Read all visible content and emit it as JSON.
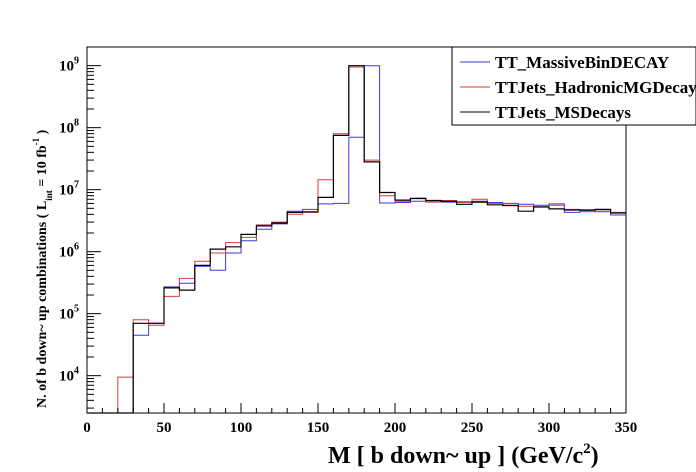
{
  "chart_data": {
    "type": "histogram",
    "xlabel": "M [ b down~ up ] (GeV/c²)",
    "ylabel": "N. of b down~ up combinations  ( L int = 10 fb⁻¹ )",
    "ylabel_main": "N. of b down~ up combinations  ( L",
    "ylabel_sub": "int",
    "ylabel_end": " = 10 fb",
    "ylabel_sup": "-1",
    "ylabel_close": " )",
    "xlabel_main": "M [ b down~ up ] (GeV/c",
    "xlabel_sup": "2",
    "xlabel_close": ")",
    "x_range": [
      0,
      350
    ],
    "y_range": [
      2500,
      2000000000
    ],
    "y_scale": "log",
    "grid": false,
    "legend_position": "top-right",
    "x_ticks": [
      "0",
      "50",
      "100",
      "150",
      "200",
      "250",
      "300",
      "350"
    ],
    "y_ticks": [
      {
        "base": "10",
        "exp": "4"
      },
      {
        "base": "10",
        "exp": "5"
      },
      {
        "base": "10",
        "exp": "6"
      },
      {
        "base": "10",
        "exp": "7"
      },
      {
        "base": "10",
        "exp": "8"
      },
      {
        "base": "10",
        "exp": "9"
      }
    ],
    "bin_edges": [
      0,
      10,
      20,
      30,
      40,
      50,
      60,
      70,
      80,
      90,
      100,
      110,
      120,
      130,
      140,
      150,
      160,
      170,
      180,
      190,
      200,
      210,
      220,
      230,
      240,
      250,
      260,
      270,
      280,
      290,
      300,
      310,
      320,
      330,
      340,
      350
    ],
    "series": [
      {
        "name": "TT_MassiveBinDECAY",
        "color": "#3b3bd9",
        "values": [
          2000,
          2000,
          2000,
          45000,
          70000,
          270000,
          310000,
          580000,
          500000,
          950000,
          1500000,
          2300000,
          2800000,
          4500000,
          4800000,
          5900000,
          6000000,
          70000000,
          1000000000,
          6100000,
          6200000,
          6500000,
          6600000,
          6300000,
          6400000,
          6500000,
          6200000,
          6000000,
          5800000,
          5600000,
          5900000,
          4300000,
          4600000,
          4400000,
          3900000
        ]
      },
      {
        "name": "TTJets_HadronicMGDecays",
        "color": "#d93b3b",
        "values": [
          2000,
          2000,
          9500,
          80000,
          65000,
          190000,
          370000,
          700000,
          950000,
          1400000,
          1700000,
          2700000,
          3000000,
          4000000,
          4300000,
          14500000,
          80000000,
          950000000,
          30000000,
          8000000,
          6500000,
          7300000,
          6300000,
          6700000,
          6200000,
          7000000,
          6000000,
          5500000,
          5400000,
          5200000,
          5600000,
          4800000,
          4400000,
          4700000,
          4300000
        ]
      },
      {
        "name": "TTJets_MSDecays",
        "color": "#000000",
        "values": [
          2000,
          2000,
          2000,
          70000,
          70000,
          260000,
          240000,
          600000,
          1100000,
          1200000,
          1900000,
          2600000,
          2900000,
          4300000,
          4400000,
          7500000,
          75000000,
          1000000000,
          28000000,
          9000000,
          6800000,
          7200000,
          6700000,
          6500000,
          5800000,
          6300000,
          5700000,
          5600000,
          4500000,
          5300000,
          4900000,
          4700000,
          4700000,
          4800000,
          4200000
        ]
      }
    ]
  }
}
